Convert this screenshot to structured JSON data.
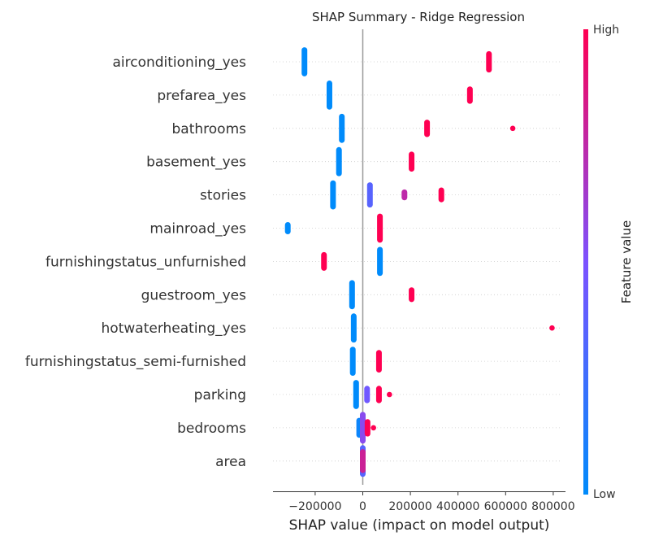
{
  "chart_data": {
    "type": "scatter",
    "title": "SHAP Summary - Ridge Regression",
    "xlabel": "SHAP value (impact on model output)",
    "ylabel": "",
    "xlim": [
      -370000,
      850000
    ],
    "xticks": [
      -200000,
      0,
      200000,
      400000,
      600000,
      800000
    ],
    "xtick_labels": [
      "−200000",
      "0",
      "200000",
      "400000",
      "600000",
      "800000"
    ],
    "grid": "horizontal dotted",
    "colorbar": {
      "label": "Feature value",
      "high_label": "High",
      "low_label": "Low",
      "low_color": "#008bfb",
      "mid_color": "#7c52ff",
      "high_color": "#ff0052"
    },
    "features": [
      {
        "name": "airconditioning_yes",
        "points": [
          {
            "x": -245000,
            "v": 0,
            "spread": 0.9
          },
          {
            "x": 530000,
            "v": 1,
            "spread": 0.6
          }
        ]
      },
      {
        "name": "prefarea_yes",
        "points": [
          {
            "x": -140000,
            "v": 0,
            "spread": 0.9
          },
          {
            "x": 450000,
            "v": 1,
            "spread": 0.45
          }
        ]
      },
      {
        "name": "bathrooms",
        "points": [
          {
            "x": -88000,
            "v": 0,
            "spread": 0.9
          },
          {
            "x": 270000,
            "v": 1,
            "spread": 0.45
          },
          {
            "x": 630000,
            "v": 1,
            "spread": 0
          }
        ]
      },
      {
        "name": "basement_yes",
        "points": [
          {
            "x": -100000,
            "v": 0,
            "spread": 0.9
          },
          {
            "x": 205000,
            "v": 1,
            "spread": 0.55
          }
        ]
      },
      {
        "name": "stories",
        "points": [
          {
            "x": -125000,
            "v": 0,
            "spread": 0.9
          },
          {
            "x": 30000,
            "v": 0.35,
            "spread": 0.75
          },
          {
            "x": 175000,
            "v": 0.75,
            "spread": 0.2
          },
          {
            "x": 330000,
            "v": 1,
            "spread": 0.35
          }
        ]
      },
      {
        "name": "mainroad_yes",
        "points": [
          {
            "x": -315000,
            "v": 0,
            "spread": 0.25
          },
          {
            "x": 72000,
            "v": 1,
            "spread": 0.9
          }
        ]
      },
      {
        "name": "furnishingstatus_unfurnished",
        "points": [
          {
            "x": -163000,
            "v": 1,
            "spread": 0.5
          },
          {
            "x": 72000,
            "v": 0,
            "spread": 0.9
          }
        ]
      },
      {
        "name": "guestroom_yes",
        "points": [
          {
            "x": -45000,
            "v": 0,
            "spread": 0.9
          },
          {
            "x": 205000,
            "v": 1,
            "spread": 0.35
          }
        ]
      },
      {
        "name": "hotwaterheating_yes",
        "points": [
          {
            "x": -38000,
            "v": 0,
            "spread": 0.9
          },
          {
            "x": 795000,
            "v": 1,
            "spread": 0
          }
        ]
      },
      {
        "name": "furnishingstatus_semi-furnished",
        "points": [
          {
            "x": -42000,
            "v": 0,
            "spread": 0.9
          },
          {
            "x": 68000,
            "v": 1,
            "spread": 0.65
          }
        ]
      },
      {
        "name": "parking",
        "points": [
          {
            "x": -28000,
            "v": 0,
            "spread": 0.9
          },
          {
            "x": 18000,
            "v": 0.45,
            "spread": 0.45
          },
          {
            "x": 68000,
            "v": 1,
            "spread": 0.45
          },
          {
            "x": 112000,
            "v": 1,
            "spread": 0
          }
        ]
      },
      {
        "name": "bedrooms",
        "points": [
          {
            "x": -15000,
            "v": 0.05,
            "spread": 0.55
          },
          {
            "x": 0,
            "v": 0.55,
            "spread": 1.0
          },
          {
            "x": 20000,
            "v": 1,
            "spread": 0.45
          },
          {
            "x": 45000,
            "v": 1,
            "spread": 0
          }
        ]
      },
      {
        "name": "area",
        "points": [
          {
            "x": 0,
            "v": 0.35,
            "spread": 1.0
          },
          {
            "x": 0,
            "v": 0.1,
            "spread": 0.7
          },
          {
            "x": 0,
            "v": 0.8,
            "spread": 0.7
          }
        ]
      }
    ]
  }
}
